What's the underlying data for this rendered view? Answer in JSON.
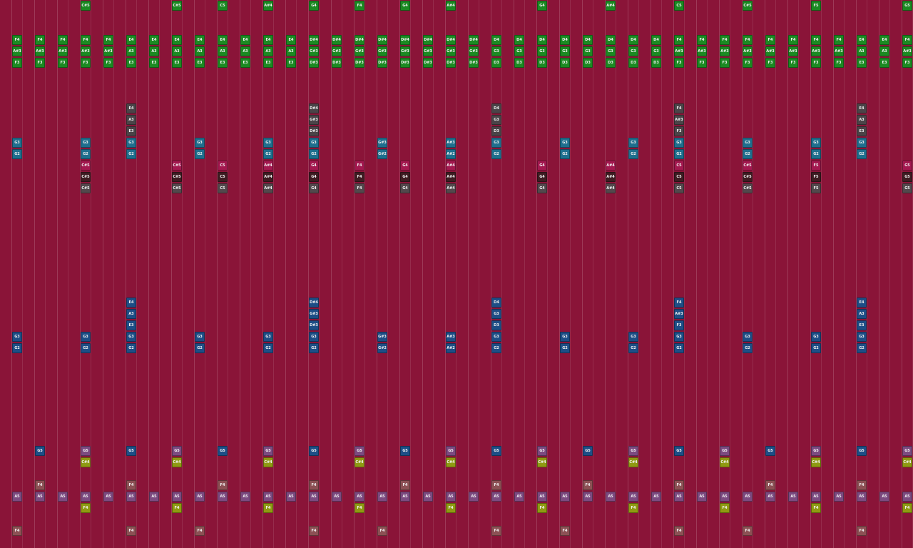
{
  "grid": {
    "rows": [
      {
        "color": "#1b8a22",
        "cells": [
          null,
          null,
          null,
          "C#5",
          null,
          null,
          null,
          "C#5",
          null,
          "C5",
          null,
          "A#4",
          null,
          "G4",
          null,
          "F4",
          null,
          "G4",
          null,
          "A#4",
          null,
          null,
          null,
          "G4",
          null,
          null,
          "A#4",
          null,
          null,
          "C5",
          null,
          null,
          "C#5",
          null,
          null,
          "F5",
          null,
          null,
          null,
          "G5"
        ]
      },
      null,
      null,
      {
        "color": "#1b8a22",
        "cells": [
          "F4",
          "F4",
          "F4",
          "F4",
          "F4",
          "E4",
          "E4",
          "E4",
          "E4",
          "E4",
          "E4",
          "E4",
          "E4",
          "D#4",
          "D#4",
          "D#4",
          "D#4",
          "D#4",
          "D#4",
          "D#4",
          "D#4",
          "D4",
          "D4",
          "D4",
          "D4",
          "D4",
          "D4",
          "D4",
          "D4",
          "F4",
          "F4",
          "F4",
          "F4",
          "F4",
          "F4",
          "F4",
          "F4",
          "E4",
          "E4",
          "F4"
        ]
      },
      {
        "color": "#1b8a22",
        "cells": [
          "A#3",
          "A#3",
          "A#3",
          "A#3",
          "A#3",
          "A3",
          "A3",
          "A3",
          "A3",
          "A3",
          "A3",
          "A3",
          "A3",
          "G#3",
          "G#3",
          "G#3",
          "G#3",
          "G#3",
          "G#3",
          "G#3",
          "G#3",
          "G3",
          "G3",
          "G3",
          "G3",
          "G3",
          "G3",
          "G3",
          "G3",
          "A#3",
          "A#3",
          "A#3",
          "A#3",
          "A#3",
          "A#3",
          "A#3",
          "A#3",
          "A3",
          "A3",
          "A#3"
        ]
      },
      {
        "color": "#1b8a22",
        "cells": [
          "F3",
          "F3",
          "F3",
          "F3",
          "F3",
          "E3",
          "E3",
          "E3",
          "E3",
          "E3",
          "E3",
          "E3",
          "E3",
          "D#3",
          "D#3",
          "D#3",
          "D#3",
          "D#3",
          "D#3",
          "D#3",
          "D#3",
          "D3",
          "D3",
          "D3",
          "D3",
          "D3",
          "D3",
          "D3",
          "D3",
          "F3",
          "F3",
          "F3",
          "F3",
          "F3",
          "F3",
          "F3",
          "F3",
          "E3",
          "E3",
          "F3"
        ]
      },
      null,
      null,
      null,
      {
        "color": "#4a4448",
        "cells": [
          null,
          null,
          null,
          null,
          null,
          "E4",
          null,
          null,
          null,
          null,
          null,
          null,
          null,
          "D#4",
          null,
          null,
          null,
          null,
          null,
          null,
          null,
          "D4",
          null,
          null,
          null,
          null,
          null,
          null,
          null,
          "F4",
          null,
          null,
          null,
          null,
          null,
          null,
          null,
          "E4",
          null,
          null
        ]
      },
      {
        "color": "#4a4448",
        "cells": [
          null,
          null,
          null,
          null,
          null,
          "A3",
          null,
          null,
          null,
          null,
          null,
          null,
          null,
          "G#3",
          null,
          null,
          null,
          null,
          null,
          null,
          null,
          "G3",
          null,
          null,
          null,
          null,
          null,
          null,
          null,
          "A#3",
          null,
          null,
          null,
          null,
          null,
          null,
          null,
          "A3",
          null,
          null
        ]
      },
      {
        "color": "#4a4448",
        "cells": [
          null,
          null,
          null,
          null,
          null,
          "E3",
          null,
          null,
          null,
          null,
          null,
          null,
          null,
          "D#3",
          null,
          null,
          null,
          null,
          null,
          null,
          null,
          "D3",
          null,
          null,
          null,
          null,
          null,
          null,
          null,
          "F3",
          null,
          null,
          null,
          null,
          null,
          null,
          null,
          "E3",
          null,
          null
        ]
      },
      {
        "color": "#1e6f8e",
        "cells": [
          "G3",
          null,
          null,
          "G3",
          null,
          "G3",
          null,
          null,
          "G3",
          null,
          null,
          "G3",
          null,
          "G3",
          null,
          null,
          "G#3",
          null,
          null,
          "A#3",
          null,
          "G3",
          null,
          null,
          "G3",
          null,
          null,
          "G3",
          null,
          "G3",
          null,
          null,
          "G3",
          null,
          null,
          "G3",
          null,
          "G3",
          null,
          null
        ]
      },
      {
        "color": "#1e6f8e",
        "cells": [
          "G2",
          null,
          null,
          "G2",
          null,
          "G2",
          null,
          null,
          "G2",
          null,
          null,
          "G2",
          null,
          "G2",
          null,
          null,
          "G#2",
          null,
          null,
          "A#2",
          null,
          "G2",
          null,
          null,
          "G2",
          null,
          null,
          "G2",
          null,
          "G2",
          null,
          null,
          "G2",
          null,
          null,
          "G2",
          null,
          "G2",
          null,
          null
        ]
      },
      {
        "color": "#a3184f",
        "cells": [
          null,
          null,
          null,
          "C#5",
          null,
          null,
          null,
          "C#5",
          null,
          "C5",
          null,
          "A#4",
          null,
          "G4",
          null,
          "F4",
          null,
          "G4",
          null,
          "A#4",
          null,
          null,
          null,
          "G4",
          null,
          null,
          "A#4",
          null,
          null,
          "C5",
          null,
          null,
          "C#5",
          null,
          null,
          "F5",
          null,
          null,
          null,
          "G5"
        ]
      },
      {
        "color": "#3e1c22",
        "cells": [
          null,
          null,
          null,
          "C#5",
          null,
          null,
          null,
          "C#5",
          null,
          "C5",
          null,
          "A#4",
          null,
          "G4",
          null,
          "F4",
          null,
          "G4",
          null,
          "A#4",
          null,
          null,
          null,
          "G4",
          null,
          null,
          "A#4",
          null,
          null,
          "C5",
          null,
          null,
          "C#5",
          null,
          null,
          "F5",
          null,
          null,
          null,
          "G5"
        ]
      },
      {
        "color": "#52484c",
        "cells": [
          null,
          null,
          null,
          "C#5",
          null,
          null,
          null,
          "C#5",
          null,
          "C5",
          null,
          "A#4",
          null,
          "G4",
          null,
          "F4",
          null,
          "G4",
          null,
          "A#4",
          null,
          null,
          null,
          "G4",
          null,
          null,
          "A#4",
          null,
          null,
          "C5",
          null,
          null,
          "C#5",
          null,
          null,
          "F5",
          null,
          null,
          null,
          "G5"
        ]
      },
      null,
      null,
      null,
      null,
      null,
      null,
      null,
      null,
      null,
      {
        "color": "#1d4e86",
        "cells": [
          null,
          null,
          null,
          null,
          null,
          "E4",
          null,
          null,
          null,
          null,
          null,
          null,
          null,
          "D#4",
          null,
          null,
          null,
          null,
          null,
          null,
          null,
          "D4",
          null,
          null,
          null,
          null,
          null,
          null,
          null,
          "F4",
          null,
          null,
          null,
          null,
          null,
          null,
          null,
          "E4",
          null,
          null
        ]
      },
      {
        "color": "#1d4e86",
        "cells": [
          null,
          null,
          null,
          null,
          null,
          "A3",
          null,
          null,
          null,
          null,
          null,
          null,
          null,
          "G#3",
          null,
          null,
          null,
          null,
          null,
          null,
          null,
          "G3",
          null,
          null,
          null,
          null,
          null,
          null,
          null,
          "A#3",
          null,
          null,
          null,
          null,
          null,
          null,
          null,
          "A3",
          null,
          null
        ]
      },
      {
        "color": "#1d4e86",
        "cells": [
          null,
          null,
          null,
          null,
          null,
          "E3",
          null,
          null,
          null,
          null,
          null,
          null,
          null,
          "D#3",
          null,
          null,
          null,
          null,
          null,
          null,
          null,
          "D3",
          null,
          null,
          null,
          null,
          null,
          null,
          null,
          "F3",
          null,
          null,
          null,
          null,
          null,
          null,
          null,
          "E3",
          null,
          null
        ]
      },
      {
        "color": "#1d4e86",
        "cells": [
          "G3",
          null,
          null,
          "G3",
          null,
          "G3",
          null,
          null,
          "G3",
          null,
          null,
          "G3",
          null,
          "G3",
          null,
          null,
          "G#3",
          null,
          null,
          "A#3",
          null,
          "G3",
          null,
          null,
          "G3",
          null,
          null,
          "G3",
          null,
          "G3",
          null,
          null,
          "G3",
          null,
          null,
          "G3",
          null,
          "G3",
          null,
          null
        ]
      },
      {
        "color": "#1d4e86",
        "cells": [
          "G2",
          null,
          null,
          "G2",
          null,
          "G2",
          null,
          null,
          "G2",
          null,
          null,
          "G2",
          null,
          "G2",
          null,
          null,
          "G#2",
          null,
          null,
          "A#2",
          null,
          "G2",
          null,
          null,
          "G2",
          null,
          null,
          "G2",
          null,
          "G2",
          null,
          null,
          "G2",
          null,
          null,
          "G2",
          null,
          "G2",
          null,
          null
        ]
      },
      null,
      null,
      null,
      null,
      null,
      null,
      null,
      null,
      {
        "color": "#7c4a80",
        "cells": [
          null,
          {
            "label": "G5",
            "color": "#1d4e86"
          },
          null,
          "G5",
          null,
          {
            "label": "G5",
            "color": "#1d4e86"
          },
          null,
          "G5",
          null,
          {
            "label": "G5",
            "color": "#1d4e86"
          },
          null,
          "G5",
          null,
          {
            "label": "G5",
            "color": "#1d4e86"
          },
          null,
          "G5",
          null,
          {
            "label": "G5",
            "color": "#1d4e86"
          },
          null,
          "G5",
          null,
          {
            "label": "G5",
            "color": "#1d4e86"
          },
          null,
          "G5",
          null,
          {
            "label": "G5",
            "color": "#1d4e86"
          },
          null,
          "G5",
          null,
          {
            "label": "G5",
            "color": "#1d4e86"
          },
          null,
          "G5",
          null,
          {
            "label": "G5",
            "color": "#1d4e86"
          },
          null,
          "G5",
          null,
          {
            "label": "G5",
            "color": "#1d4e86"
          },
          null,
          "G5"
        ]
      },
      {
        "color": "#8f9a12",
        "cells": [
          null,
          null,
          null,
          "C#4",
          null,
          null,
          null,
          "C#4",
          null,
          null,
          null,
          "C#4",
          null,
          null,
          null,
          "C#4",
          null,
          null,
          null,
          "C#4",
          null,
          null,
          null,
          "C#4",
          null,
          null,
          null,
          "C#4",
          null,
          null,
          null,
          "C#4",
          null,
          null,
          null,
          "C#4",
          null,
          null,
          null,
          "C#4"
        ]
      },
      null,
      {
        "color": "#8c5054",
        "cells": [
          null,
          "F4",
          null,
          null,
          null,
          "F4",
          null,
          null,
          null,
          "F4",
          null,
          null,
          null,
          "F4",
          null,
          null,
          null,
          "F4",
          null,
          null,
          null,
          "F4",
          null,
          null,
          null,
          "F4",
          null,
          null,
          null,
          "F4",
          null,
          null,
          null,
          "F4",
          null,
          null,
          null,
          "F4",
          null,
          null
        ]
      },
      {
        "color": "#7c4a80",
        "cells": [
          "A5",
          "A5",
          "A5",
          "A5",
          "A5",
          "A5",
          "A5",
          "A5",
          "A5",
          "A5",
          "A5",
          "A5",
          "A5",
          "A5",
          "A5",
          "A5",
          "A5",
          "A5",
          "A5",
          "A5",
          "A5",
          "A5",
          "A5",
          "A5",
          "A5",
          "A5",
          "A5",
          "A5",
          "A5",
          "A5",
          "A5",
          "A5",
          "A5",
          "A5",
          "A5",
          "A5",
          "A5",
          "A5",
          "A5",
          "A5"
        ]
      },
      {
        "color": "#8f9a12",
        "cells": [
          null,
          null,
          null,
          "F4",
          null,
          null,
          null,
          "F4",
          null,
          null,
          null,
          "F4",
          null,
          null,
          null,
          "F4",
          null,
          null,
          null,
          "F4",
          null,
          null,
          null,
          "F4",
          null,
          null,
          null,
          "F4",
          null,
          null,
          null,
          "F4",
          null,
          null,
          null,
          "F4",
          null,
          null,
          null,
          "F4"
        ]
      },
      null,
      {
        "color": "#8c5054",
        "cells": [
          "F4",
          null,
          null,
          null,
          null,
          "F4",
          null,
          null,
          "F4",
          null,
          null,
          null,
          null,
          "F4",
          null,
          null,
          "F4",
          null,
          null,
          null,
          null,
          "F4",
          null,
          null,
          "F4",
          null,
          null,
          null,
          null,
          "F4",
          null,
          null,
          "F4",
          null,
          null,
          null,
          null,
          "F4",
          null,
          null
        ]
      },
      null
    ]
  }
}
